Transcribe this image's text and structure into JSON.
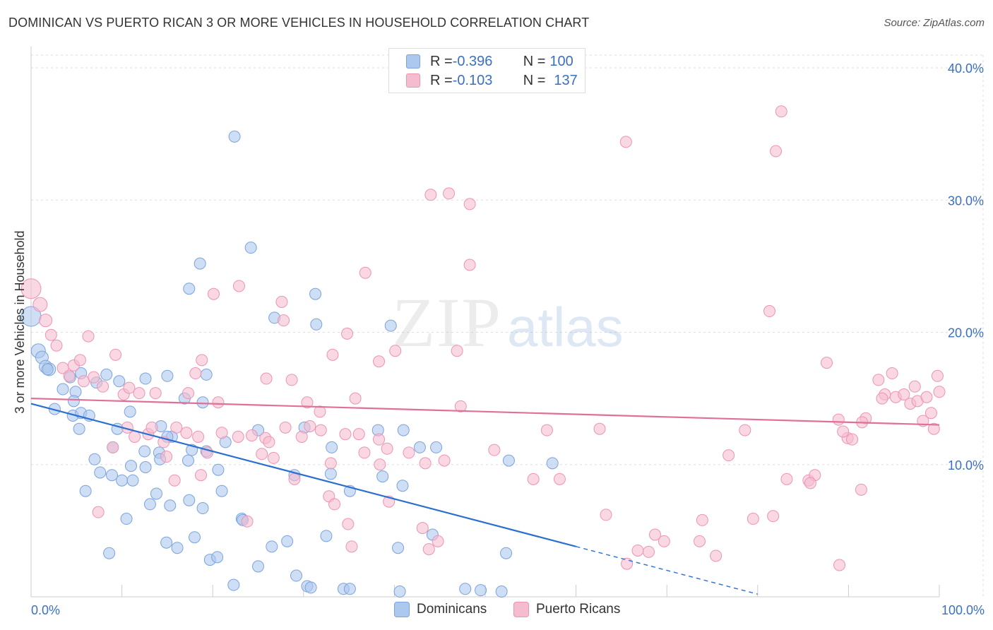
{
  "title": "DOMINICAN VS PUERTO RICAN 3 OR MORE VEHICLES IN HOUSEHOLD CORRELATION CHART",
  "source": "Source: ZipAtlas.com",
  "watermark": {
    "zip": "ZIP",
    "atlas": "atlas"
  },
  "legend_top": {
    "rows": [
      {
        "r_label": "R = ",
        "r_value": "-0.396",
        "n_label": "N = ",
        "n_value": "100"
      },
      {
        "r_label": "R = ",
        "r_value": "-0.103",
        "n_label": "N = ",
        "n_value": "137"
      }
    ]
  },
  "legend_bottom": {
    "series1": "Dominicans",
    "series2": "Puerto Ricans"
  },
  "colors": {
    "dominican_fill": "#adc8ee",
    "dominican_stroke": "#7ba3dc",
    "dominican_line": "#2b6fcf",
    "puerto_fill": "#f5bcd0",
    "puerto_stroke": "#ec94b3",
    "puerto_line": "#e0709a",
    "axis_text": "#3a70c4",
    "grid": "#dddddd"
  },
  "chart_data": {
    "type": "scatter",
    "title": "DOMINICAN VS PUERTO RICAN 3 OR MORE VEHICLES IN HOUSEHOLD CORRELATION CHART",
    "ylabel": "3 or more Vehicles in Household",
    "xlabel": "",
    "x_tick_labels": [
      "0.0%",
      "100.0%"
    ],
    "y_tick_labels": [
      "10.0%",
      "20.0%",
      "30.0%",
      "40.0%"
    ],
    "y_ticks": [
      10,
      20,
      30,
      40
    ],
    "xlim": [
      0,
      100
    ],
    "ylim": [
      0,
      40
    ],
    "grid": true,
    "legend_position": "top-center",
    "series": [
      {
        "name": "Dominicans",
        "r": -0.396,
        "n": 100,
        "trend": {
          "x0": 0,
          "y0": 14.6,
          "x1": 60,
          "y1": 3.8,
          "dash_to_x": 80,
          "dash_to_y": 0.2
        },
        "points": [
          [
            0,
            21.2,
            14
          ],
          [
            0.8,
            18.6,
            10
          ],
          [
            1.2,
            18.1,
            9
          ],
          [
            1.6,
            17.4,
            9
          ],
          [
            2.0,
            17.2,
            9
          ],
          [
            1.8,
            17.2,
            8
          ],
          [
            4.3,
            16.6,
            8
          ],
          [
            3.5,
            15.7,
            8
          ],
          [
            4.9,
            15.5,
            8
          ],
          [
            5.5,
            16.9,
            8
          ],
          [
            7.2,
            16.2,
            8
          ],
          [
            8.3,
            16.8,
            8
          ],
          [
            9.7,
            16.3,
            8
          ],
          [
            12.6,
            16.5,
            8
          ],
          [
            15.0,
            16.7,
            8
          ],
          [
            16.9,
            15.0,
            8
          ],
          [
            19.3,
            16.8,
            8
          ],
          [
            17.4,
            23.3,
            8
          ],
          [
            18.6,
            25.2,
            8
          ],
          [
            22.4,
            34.8,
            8
          ],
          [
            24.2,
            26.4,
            8
          ],
          [
            26.8,
            21.1,
            8
          ],
          [
            31.3,
            22.9,
            8
          ],
          [
            31.4,
            20.6,
            8
          ],
          [
            39.6,
            20.5,
            8
          ],
          [
            2.6,
            14.2,
            8
          ],
          [
            4.6,
            13.7,
            8
          ],
          [
            4.7,
            14.8,
            8
          ],
          [
            5.5,
            13.9,
            8
          ],
          [
            6.4,
            13.7,
            8
          ],
          [
            5.3,
            12.7,
            8
          ],
          [
            9.5,
            12.7,
            8
          ],
          [
            10.9,
            14.0,
            8
          ],
          [
            14.3,
            12.9,
            8
          ],
          [
            15.5,
            12.1,
            8
          ],
          [
            18.9,
            14.7,
            8
          ],
          [
            9.0,
            11.3,
            8
          ],
          [
            7.0,
            10.4,
            8
          ],
          [
            7.6,
            9.4,
            8
          ],
          [
            8.9,
            9.2,
            8
          ],
          [
            10.0,
            8.8,
            8
          ],
          [
            11.0,
            9.9,
            8
          ],
          [
            12.6,
            9.8,
            8
          ],
          [
            12.5,
            11.0,
            8
          ],
          [
            14.1,
            10.9,
            8
          ],
          [
            14.2,
            10.4,
            8
          ],
          [
            15.0,
            12.1,
            8
          ],
          [
            17.7,
            11.1,
            8
          ],
          [
            17.3,
            10.3,
            8
          ],
          [
            19.3,
            11.0,
            8
          ],
          [
            20.6,
            9.6,
            8
          ],
          [
            21.4,
            11.7,
            8
          ],
          [
            25.0,
            12.6,
            8
          ],
          [
            30.1,
            12.8,
            8
          ],
          [
            33.1,
            11.3,
            8
          ],
          [
            29.0,
            9.2,
            8
          ],
          [
            33.0,
            9.3,
            8
          ],
          [
            35.1,
            8.0,
            8
          ],
          [
            38.2,
            12.6,
            8
          ],
          [
            38.7,
            9.1,
            8
          ],
          [
            41.0,
            12.6,
            8
          ],
          [
            42.8,
            11.3,
            8
          ],
          [
            44.6,
            11.3,
            8
          ],
          [
            52.6,
            10.3,
            8
          ],
          [
            57.4,
            10.1,
            8
          ],
          [
            6.0,
            8.0,
            8
          ],
          [
            11.2,
            8.8,
            8
          ],
          [
            13.8,
            7.8,
            8
          ],
          [
            13.1,
            7.0,
            8
          ],
          [
            15.3,
            6.9,
            8
          ],
          [
            17.4,
            7.3,
            8
          ],
          [
            18.9,
            6.7,
            8
          ],
          [
            21.0,
            8.0,
            8
          ],
          [
            23.2,
            5.9,
            8
          ],
          [
            10.5,
            5.9,
            8
          ],
          [
            14.9,
            4.1,
            8
          ],
          [
            16.1,
            3.7,
            8
          ],
          [
            18.0,
            4.5,
            8
          ],
          [
            19.7,
            2.8,
            8
          ],
          [
            20.5,
            3.0,
            8
          ],
          [
            26.5,
            3.8,
            8
          ],
          [
            28.2,
            4.2,
            8
          ],
          [
            32.5,
            4.6,
            8
          ],
          [
            40.4,
            3.7,
            8
          ],
          [
            44.2,
            4.7,
            8
          ],
          [
            52.3,
            3.3,
            8
          ],
          [
            8.6,
            3.3,
            8
          ],
          [
            25.0,
            2.3,
            8
          ],
          [
            22.3,
            0.9,
            8
          ],
          [
            29.2,
            1.6,
            8
          ],
          [
            30.4,
            0.8,
            8
          ],
          [
            30.8,
            0.7,
            8
          ],
          [
            34.4,
            0.6,
            8
          ],
          [
            35.1,
            0.6,
            8
          ],
          [
            40.6,
            0.4,
            8
          ],
          [
            47.8,
            0.6,
            8
          ],
          [
            51.8,
            0.4,
            8
          ],
          [
            49.5,
            0.5,
            8
          ],
          [
            23.3,
            5.8,
            8
          ],
          [
            40.9,
            8.4,
            8
          ]
        ]
      },
      {
        "name": "Puerto Ricans",
        "r": -0.103,
        "n": 137,
        "trend": {
          "x0": 0,
          "y0": 15.0,
          "x1": 100,
          "y1": 13.0
        },
        "points": [
          [
            0,
            23.3,
            14
          ],
          [
            1.0,
            22.1,
            10
          ],
          [
            1.6,
            20.9,
            9
          ],
          [
            2.2,
            19.8,
            8
          ],
          [
            2.8,
            19.0,
            8
          ],
          [
            3.5,
            17.3,
            8
          ],
          [
            4.2,
            16.7,
            8
          ],
          [
            4.7,
            17.5,
            8
          ],
          [
            5.4,
            17.9,
            8
          ],
          [
            5.8,
            16.3,
            8
          ],
          [
            6.3,
            19.7,
            8
          ],
          [
            6.9,
            16.6,
            8
          ],
          [
            7.9,
            15.9,
            8
          ],
          [
            9.3,
            18.3,
            8
          ],
          [
            10.2,
            15.3,
            8
          ],
          [
            10.8,
            15.8,
            8
          ],
          [
            11.9,
            15.4,
            8
          ],
          [
            13.7,
            15.4,
            8
          ],
          [
            17.3,
            15.4,
            8
          ],
          [
            18.1,
            16.9,
            8
          ],
          [
            18.8,
            17.9,
            8
          ],
          [
            20.6,
            14.7,
            8
          ],
          [
            20.1,
            22.9,
            8
          ],
          [
            22.9,
            23.5,
            8
          ],
          [
            27.6,
            22.3,
            8
          ],
          [
            27.8,
            20.9,
            8
          ],
          [
            25.9,
            16.5,
            8
          ],
          [
            28.7,
            16.4,
            8
          ],
          [
            30.4,
            14.7,
            8
          ],
          [
            31.8,
            14.0,
            8
          ],
          [
            33.2,
            18.3,
            8
          ],
          [
            34.8,
            19.9,
            8
          ],
          [
            35.7,
            15.0,
            8
          ],
          [
            36.8,
            24.5,
            8
          ],
          [
            38.3,
            17.8,
            8
          ],
          [
            40.1,
            18.6,
            8
          ],
          [
            44.0,
            30.4,
            8
          ],
          [
            46.0,
            30.5,
            8
          ],
          [
            48.3,
            29.7,
            8
          ],
          [
            48.3,
            25.1,
            8
          ],
          [
            47.3,
            14.4,
            8
          ],
          [
            46.9,
            18.6,
            8
          ],
          [
            65.5,
            34.4,
            8
          ],
          [
            82.6,
            36.7,
            8
          ],
          [
            82.0,
            33.7,
            8
          ],
          [
            81.3,
            21.6,
            8
          ],
          [
            87.6,
            17.7,
            8
          ],
          [
            93.3,
            16.4,
            8
          ],
          [
            94.8,
            16.9,
            8
          ],
          [
            94.0,
            15.3,
            8
          ],
          [
            95.2,
            15.1,
            8
          ],
          [
            96.1,
            15.3,
            8
          ],
          [
            96.8,
            14.6,
            8
          ],
          [
            97.3,
            15.9,
            8
          ],
          [
            97.6,
            14.8,
            8
          ],
          [
            98.6,
            15.1,
            8
          ],
          [
            99.1,
            13.9,
            8
          ],
          [
            99.8,
            16.7,
            8
          ],
          [
            100.0,
            15.5,
            8
          ],
          [
            99.4,
            12.7,
            8
          ],
          [
            93.7,
            15.0,
            8
          ],
          [
            91.9,
            13.5,
            8
          ],
          [
            91.5,
            13.2,
            8
          ],
          [
            89.9,
            12.0,
            8
          ],
          [
            88.9,
            13.4,
            8
          ],
          [
            89.4,
            12.5,
            8
          ],
          [
            90.4,
            11.9,
            8
          ],
          [
            98.2,
            13.3,
            8
          ],
          [
            9.0,
            11.3,
            8
          ],
          [
            10.6,
            12.8,
            8
          ],
          [
            11.4,
            12.1,
            8
          ],
          [
            12.9,
            12.3,
            8
          ],
          [
            13.3,
            12.8,
            8
          ],
          [
            14.6,
            11.7,
            8
          ],
          [
            16.0,
            12.8,
            8
          ],
          [
            17.1,
            12.4,
            8
          ],
          [
            18.4,
            12.1,
            8
          ],
          [
            19.4,
            10.9,
            8
          ],
          [
            21.0,
            12.4,
            8
          ],
          [
            22.8,
            12.1,
            8
          ],
          [
            24.3,
            12.2,
            8
          ],
          [
            25.8,
            12.0,
            8
          ],
          [
            28.0,
            12.8,
            8
          ],
          [
            29.8,
            12.1,
            8
          ],
          [
            31.9,
            12.6,
            8
          ],
          [
            34.6,
            12.3,
            8
          ],
          [
            36.1,
            12.3,
            8
          ],
          [
            38.3,
            11.9,
            8
          ],
          [
            39.2,
            11.2,
            8
          ],
          [
            41.6,
            10.9,
            8
          ],
          [
            45.5,
            10.3,
            8
          ],
          [
            51.0,
            11.1,
            8
          ],
          [
            56.8,
            12.6,
            8
          ],
          [
            62.6,
            12.7,
            8
          ],
          [
            14.9,
            10.6,
            8
          ],
          [
            18.7,
            9.2,
            8
          ],
          [
            25.4,
            10.8,
            8
          ],
          [
            26.7,
            10.5,
            8
          ],
          [
            29.0,
            8.9,
            8
          ],
          [
            33.0,
            10.1,
            8
          ],
          [
            36.7,
            10.9,
            8
          ],
          [
            38.4,
            10.0,
            8
          ],
          [
            43.4,
            10.1,
            8
          ],
          [
            55.3,
            8.9,
            8
          ],
          [
            58.2,
            8.9,
            8
          ],
          [
            76.8,
            10.7,
            8
          ],
          [
            83.2,
            8.9,
            8
          ],
          [
            85.6,
            8.8,
            8
          ],
          [
            86.3,
            9.2,
            8
          ],
          [
            85.8,
            8.6,
            8
          ],
          [
            91.4,
            8.1,
            8
          ],
          [
            7.4,
            6.4,
            8
          ],
          [
            15.8,
            8.8,
            8
          ],
          [
            32.8,
            7.6,
            8
          ],
          [
            33.4,
            7.0,
            8
          ],
          [
            34.9,
            5.5,
            8
          ],
          [
            35.3,
            3.8,
            8
          ],
          [
            39.4,
            7.2,
            8
          ],
          [
            43.1,
            5.2,
            8
          ],
          [
            43.8,
            3.6,
            8
          ],
          [
            44.8,
            4.2,
            8
          ],
          [
            23.8,
            5.7,
            8
          ],
          [
            63.3,
            6.2,
            8
          ],
          [
            66.8,
            3.5,
            8
          ],
          [
            68.0,
            3.4,
            8
          ],
          [
            68.7,
            4.7,
            8
          ],
          [
            69.7,
            4.2,
            8
          ],
          [
            73.6,
            4.2,
            8
          ],
          [
            73.9,
            5.8,
            8
          ],
          [
            75.4,
            3.1,
            8
          ],
          [
            79.5,
            5.9,
            8
          ],
          [
            81.7,
            6.1,
            8
          ],
          [
            89.0,
            2.4,
            8
          ],
          [
            65.6,
            2.5,
            8
          ],
          [
            78.6,
            12.6,
            8
          ],
          [
            26.2,
            11.7,
            8
          ],
          [
            30.7,
            12.9,
            8
          ]
        ]
      }
    ]
  }
}
